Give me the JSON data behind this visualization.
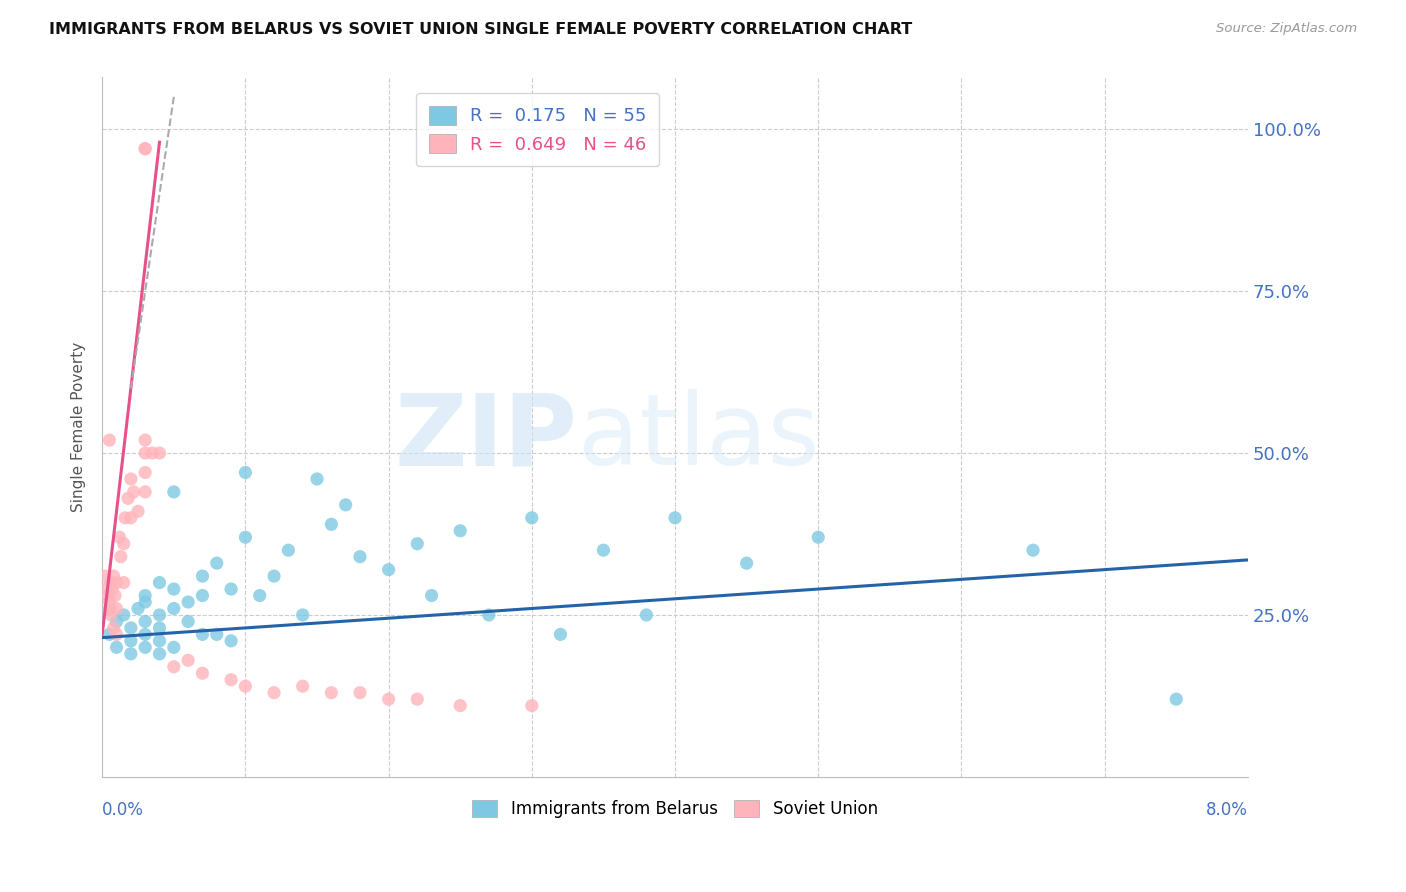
{
  "title": "IMMIGRANTS FROM BELARUS VS SOVIET UNION SINGLE FEMALE POVERTY CORRELATION CHART",
  "source": "Source: ZipAtlas.com",
  "ylabel": "Single Female Poverty",
  "xlim": [
    0.0,
    0.08
  ],
  "ylim": [
    0.0,
    1.08
  ],
  "color_belarus": "#7ec8e3",
  "color_soviet": "#ffb3ba",
  "trendline_belarus_color": "#2563a8",
  "trendline_soviet_color": "#e8508a",
  "watermark_zip": "ZIP",
  "watermark_atlas": "atlas",
  "background_color": "#ffffff",
  "belarus_x": [
    0.0005,
    0.001,
    0.001,
    0.0015,
    0.002,
    0.002,
    0.002,
    0.0025,
    0.003,
    0.003,
    0.003,
    0.003,
    0.003,
    0.004,
    0.004,
    0.004,
    0.004,
    0.004,
    0.005,
    0.005,
    0.005,
    0.005,
    0.006,
    0.006,
    0.007,
    0.007,
    0.007,
    0.008,
    0.008,
    0.009,
    0.009,
    0.01,
    0.01,
    0.011,
    0.012,
    0.013,
    0.014,
    0.015,
    0.016,
    0.017,
    0.018,
    0.02,
    0.022,
    0.023,
    0.025,
    0.027,
    0.03,
    0.032,
    0.035,
    0.038,
    0.04,
    0.045,
    0.05,
    0.065,
    0.075
  ],
  "belarus_y": [
    0.22,
    0.2,
    0.24,
    0.25,
    0.21,
    0.23,
    0.19,
    0.26,
    0.28,
    0.22,
    0.2,
    0.24,
    0.27,
    0.25,
    0.21,
    0.23,
    0.3,
    0.19,
    0.44,
    0.29,
    0.26,
    0.2,
    0.27,
    0.24,
    0.31,
    0.28,
    0.22,
    0.33,
    0.22,
    0.29,
    0.21,
    0.47,
    0.37,
    0.28,
    0.31,
    0.35,
    0.25,
    0.46,
    0.39,
    0.42,
    0.34,
    0.32,
    0.36,
    0.28,
    0.38,
    0.25,
    0.4,
    0.22,
    0.35,
    0.25,
    0.4,
    0.33,
    0.37,
    0.35,
    0.12
  ],
  "soviet_x": [
    0.0002,
    0.0003,
    0.0004,
    0.0005,
    0.0005,
    0.0006,
    0.0006,
    0.0007,
    0.0008,
    0.0008,
    0.0009,
    0.001,
    0.001,
    0.001,
    0.0012,
    0.0013,
    0.0015,
    0.0015,
    0.0016,
    0.0018,
    0.002,
    0.002,
    0.0022,
    0.0025,
    0.003,
    0.003,
    0.003,
    0.003,
    0.003,
    0.003,
    0.0035,
    0.004,
    0.005,
    0.006,
    0.007,
    0.009,
    0.01,
    0.012,
    0.014,
    0.016,
    0.018,
    0.02,
    0.022,
    0.025,
    0.03,
    0.0005
  ],
  "soviet_y": [
    0.31,
    0.29,
    0.28,
    0.27,
    0.26,
    0.3,
    0.25,
    0.29,
    0.31,
    0.23,
    0.28,
    0.3,
    0.26,
    0.22,
    0.37,
    0.34,
    0.36,
    0.3,
    0.4,
    0.43,
    0.46,
    0.4,
    0.44,
    0.41,
    0.97,
    0.97,
    0.44,
    0.47,
    0.5,
    0.52,
    0.5,
    0.5,
    0.17,
    0.18,
    0.16,
    0.15,
    0.14,
    0.13,
    0.14,
    0.13,
    0.13,
    0.12,
    0.12,
    0.11,
    0.11,
    0.52
  ]
}
